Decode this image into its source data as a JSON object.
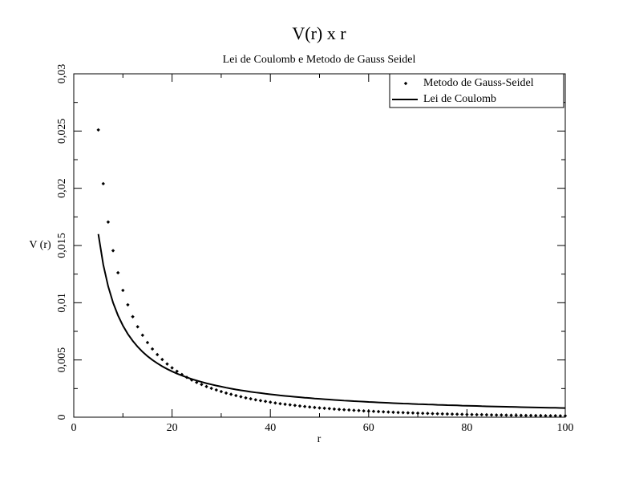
{
  "chart_data": {
    "type": "line",
    "title": "V(r) x r",
    "subtitle": "Lei de Coulomb e Metodo de Gauss Seidel",
    "x_label": "r",
    "y_label": "V (r)",
    "x": [
      5,
      6,
      7,
      8,
      9,
      10,
      11,
      12,
      13,
      14,
      15,
      16,
      17,
      18,
      19,
      20,
      21,
      22,
      23,
      24,
      25,
      26,
      27,
      28,
      29,
      30,
      31,
      32,
      33,
      34,
      35,
      36,
      37,
      38,
      39,
      40,
      41,
      42,
      43,
      44,
      45,
      46,
      47,
      48,
      49,
      50,
      51,
      52,
      53,
      54,
      55,
      56,
      57,
      58,
      59,
      60,
      61,
      62,
      63,
      64,
      65,
      66,
      67,
      68,
      69,
      70,
      71,
      72,
      73,
      74,
      75,
      76,
      77,
      78,
      79,
      80,
      81,
      82,
      83,
      84,
      85,
      86,
      87,
      88,
      89,
      90,
      91,
      92,
      93,
      94,
      95,
      96,
      97,
      98,
      99,
      100
    ],
    "series": [
      {
        "name": "Metodo de Gauss-Seidel",
        "mode": "markers",
        "color": "#000000",
        "values": [
          0.0251,
          0.0204,
          0.01705,
          0.01455,
          0.01262,
          0.01108,
          0.00982,
          0.00878,
          0.0079,
          0.00716,
          0.00652,
          0.00596,
          0.00547,
          0.00504,
          0.00465,
          0.00431,
          0.00401,
          0.00373,
          0.00348,
          0.00325,
          0.00304,
          0.00286,
          0.00268,
          0.00252,
          0.00238,
          0.00224,
          0.00211,
          0.002,
          0.00189,
          0.00179,
          0.00169,
          0.00161,
          0.00152,
          0.00145,
          0.00138,
          0.00131,
          0.00124,
          0.00118,
          0.00113,
          0.00108,
          0.00103,
          0.00098,
          0.00093,
          0.00089,
          0.00085,
          0.00081,
          0.00078,
          0.00075,
          0.00071,
          0.00068,
          0.00065,
          0.00063,
          0.0006,
          0.00058,
          0.00055,
          0.00053,
          0.00051,
          0.00049,
          0.00047,
          0.00045,
          0.00043,
          0.00041,
          0.0004,
          0.00038,
          0.00037,
          0.00035,
          0.00034,
          0.00033,
          0.00031,
          0.0003,
          0.00029,
          0.00028,
          0.00027,
          0.00026,
          0.00025,
          0.00024,
          0.00023,
          0.00022,
          0.00022,
          0.00021,
          0.0002,
          0.00019,
          0.00019,
          0.00018,
          0.00017,
          0.00017,
          0.00016,
          0.00015,
          0.00015,
          0.00014,
          0.00014,
          0.00013,
          0.00013,
          0.00013,
          0.00012,
          0.00012
        ]
      },
      {
        "name": "Lei de Coulomb",
        "mode": "line",
        "color": "#000000",
        "values": [
          0.016,
          0.01333,
          0.01143,
          0.01,
          0.00889,
          0.008,
          0.00727,
          0.00667,
          0.00615,
          0.00571,
          0.00533,
          0.005,
          0.00471,
          0.00444,
          0.00421,
          0.004,
          0.00381,
          0.00364,
          0.00348,
          0.00333,
          0.0032,
          0.00308,
          0.00296,
          0.00286,
          0.00276,
          0.00267,
          0.00258,
          0.0025,
          0.00242,
          0.00235,
          0.00229,
          0.00222,
          0.00216,
          0.00211,
          0.00205,
          0.002,
          0.00195,
          0.0019,
          0.00186,
          0.00182,
          0.00178,
          0.00174,
          0.0017,
          0.00167,
          0.00163,
          0.0016,
          0.00157,
          0.00154,
          0.00151,
          0.00148,
          0.00145,
          0.00143,
          0.0014,
          0.00138,
          0.00136,
          0.00133,
          0.00131,
          0.00129,
          0.00127,
          0.00125,
          0.00123,
          0.00121,
          0.00119,
          0.00118,
          0.00116,
          0.00114,
          0.00113,
          0.00111,
          0.0011,
          0.00108,
          0.00107,
          0.00105,
          0.00104,
          0.00103,
          0.00101,
          0.001,
          0.00099,
          0.00098,
          0.00096,
          0.00095,
          0.00094,
          0.00093,
          0.00092,
          0.00091,
          0.0009,
          0.00089,
          0.00088,
          0.00087,
          0.00086,
          0.00085,
          0.00084,
          0.00083,
          0.00082,
          0.00082,
          0.00081,
          0.0008
        ]
      }
    ],
    "xlim": [
      0,
      100
    ],
    "ylim": [
      0,
      0.03
    ],
    "xticks": [
      0,
      20,
      40,
      60,
      80,
      100
    ],
    "xminorticks": [
      10,
      30,
      50,
      70,
      90
    ],
    "yticks": [
      0,
      {
        "value": 0.005,
        "label": "0,005"
      },
      {
        "value": 0.01,
        "label": "0,01"
      },
      {
        "value": 0.015,
        "label": "0,015"
      },
      {
        "value": 0.02,
        "label": "0,02"
      },
      {
        "value": 0.025,
        "label": "0,025"
      },
      {
        "value": 0.03,
        "label": "0,03"
      }
    ],
    "yminorticks": [
      0.0025,
      0.0075,
      0.0125,
      0.0175,
      0.0225,
      0.0275
    ],
    "grid": false,
    "legend": "upper-right"
  }
}
